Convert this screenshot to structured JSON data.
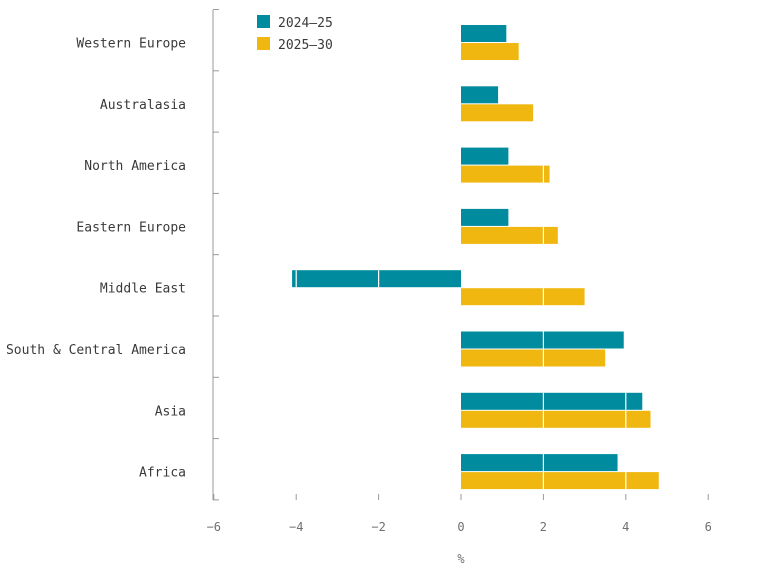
{
  "chart_data": {
    "type": "bar",
    "orientation": "horizontal",
    "categories": [
      "Western Europe",
      "Australasia",
      "North America",
      "Eastern Europe",
      "Middle East",
      "South & Central America",
      "Asia",
      "Africa"
    ],
    "series": [
      {
        "name": "2024–25",
        "color": "#008c9e",
        "values": [
          1.1,
          0.9,
          1.15,
          1.15,
          -4.1,
          3.95,
          4.4,
          3.8
        ]
      },
      {
        "name": "2025–30",
        "color": "#f0b710",
        "values": [
          1.4,
          1.75,
          2.15,
          2.35,
          3.0,
          3.5,
          4.6,
          4.8
        ]
      }
    ],
    "xlabel": "%",
    "ylabel": "",
    "xlim": [
      -6,
      6
    ],
    "xticks": [
      "−6",
      "−4",
      "−2",
      "0",
      "2",
      "4",
      "6"
    ],
    "legend_placement": "top-left",
    "grid": "white lines inside bars"
  }
}
